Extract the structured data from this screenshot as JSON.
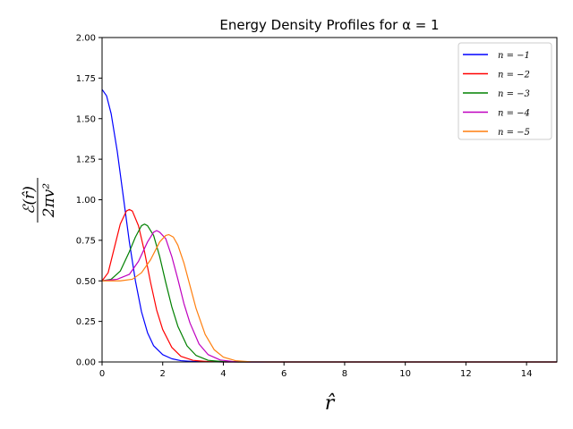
{
  "chart_data": {
    "type": "line",
    "title": "Energy Density Profiles for α = 1",
    "xlabel": "r̂",
    "ylabel_numerator": "ℰ(r̂)",
    "ylabel_denominator": "2πv²",
    "xlim": [
      0,
      15
    ],
    "ylim": [
      0,
      2.0
    ],
    "xticks": [
      "0",
      "2",
      "4",
      "6",
      "8",
      "10",
      "12",
      "14"
    ],
    "yticks": [
      "0.00",
      "0.25",
      "0.50",
      "0.75",
      "1.00",
      "1.25",
      "1.50",
      "1.75",
      "2.00"
    ],
    "grid": false,
    "legend_position": "top-right",
    "series": [
      {
        "name": "n = −1",
        "color": "#0000ff",
        "points": [
          [
            0,
            1.68
          ],
          [
            0.15,
            1.64
          ],
          [
            0.3,
            1.53
          ],
          [
            0.5,
            1.3
          ],
          [
            0.7,
            1.02
          ],
          [
            0.9,
            0.74
          ],
          [
            1.1,
            0.5
          ],
          [
            1.3,
            0.31
          ],
          [
            1.5,
            0.18
          ],
          [
            1.7,
            0.1
          ],
          [
            2.0,
            0.045
          ],
          [
            2.3,
            0.02
          ],
          [
            2.6,
            0.008
          ],
          [
            3.0,
            0.003
          ],
          [
            3.5,
            0.001
          ],
          [
            4.0,
            0.0
          ],
          [
            15,
            0.0
          ]
        ]
      },
      {
        "name": "n = −2",
        "color": "#ff0000",
        "points": [
          [
            0,
            0.5
          ],
          [
            0.2,
            0.55
          ],
          [
            0.4,
            0.7
          ],
          [
            0.6,
            0.85
          ],
          [
            0.8,
            0.93
          ],
          [
            0.9,
            0.94
          ],
          [
            1.0,
            0.93
          ],
          [
            1.2,
            0.84
          ],
          [
            1.4,
            0.68
          ],
          [
            1.6,
            0.49
          ],
          [
            1.8,
            0.32
          ],
          [
            2.0,
            0.2
          ],
          [
            2.3,
            0.09
          ],
          [
            2.6,
            0.035
          ],
          [
            3.0,
            0.01
          ],
          [
            3.5,
            0.002
          ],
          [
            4.0,
            0.0
          ],
          [
            15,
            0.0
          ]
        ]
      },
      {
        "name": "n = −3",
        "color": "#008000",
        "points": [
          [
            0,
            0.5
          ],
          [
            0.3,
            0.51
          ],
          [
            0.6,
            0.56
          ],
          [
            0.9,
            0.68
          ],
          [
            1.1,
            0.77
          ],
          [
            1.3,
            0.84
          ],
          [
            1.4,
            0.85
          ],
          [
            1.5,
            0.84
          ],
          [
            1.7,
            0.78
          ],
          [
            1.9,
            0.65
          ],
          [
            2.1,
            0.49
          ],
          [
            2.3,
            0.34
          ],
          [
            2.5,
            0.22
          ],
          [
            2.8,
            0.1
          ],
          [
            3.1,
            0.04
          ],
          [
            3.5,
            0.01
          ],
          [
            4.0,
            0.002
          ],
          [
            4.5,
            0.0
          ],
          [
            15,
            0.0
          ]
        ]
      },
      {
        "name": "n = −4",
        "color": "#bf00bf",
        "points": [
          [
            0,
            0.5
          ],
          [
            0.5,
            0.51
          ],
          [
            0.9,
            0.54
          ],
          [
            1.2,
            0.62
          ],
          [
            1.5,
            0.74
          ],
          [
            1.7,
            0.8
          ],
          [
            1.8,
            0.81
          ],
          [
            1.9,
            0.8
          ],
          [
            2.1,
            0.76
          ],
          [
            2.3,
            0.65
          ],
          [
            2.5,
            0.51
          ],
          [
            2.7,
            0.36
          ],
          [
            2.9,
            0.24
          ],
          [
            3.2,
            0.11
          ],
          [
            3.5,
            0.045
          ],
          [
            3.9,
            0.012
          ],
          [
            4.3,
            0.003
          ],
          [
            4.8,
            0.0
          ],
          [
            15,
            0.0
          ]
        ]
      },
      {
        "name": "n = −5",
        "color": "#ff7f0e",
        "points": [
          [
            0,
            0.5
          ],
          [
            0.6,
            0.5
          ],
          [
            1.0,
            0.51
          ],
          [
            1.3,
            0.55
          ],
          [
            1.6,
            0.63
          ],
          [
            1.9,
            0.74
          ],
          [
            2.1,
            0.78
          ],
          [
            2.2,
            0.785
          ],
          [
            2.35,
            0.77
          ],
          [
            2.5,
            0.72
          ],
          [
            2.7,
            0.61
          ],
          [
            2.9,
            0.47
          ],
          [
            3.1,
            0.33
          ],
          [
            3.4,
            0.17
          ],
          [
            3.7,
            0.075
          ],
          [
            4.0,
            0.03
          ],
          [
            4.4,
            0.008
          ],
          [
            4.9,
            0.001
          ],
          [
            5.5,
            0.0
          ],
          [
            15,
            0.0
          ]
        ]
      }
    ]
  }
}
